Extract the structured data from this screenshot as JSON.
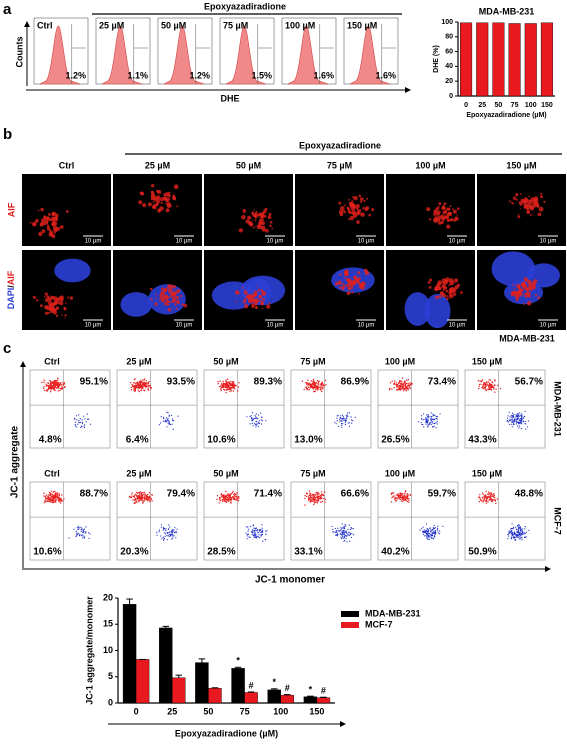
{
  "panel_a": {
    "label": "a",
    "header": "Epoxyazadiradione",
    "y_label": "Counts",
    "x_label": "DHE",
    "histograms": [
      {
        "title": "Ctrl",
        "percent": "1.2%"
      },
      {
        "title": "25 µM",
        "percent": "1.1%"
      },
      {
        "title": "50 µM",
        "percent": "1.2%"
      },
      {
        "title": "75 µM",
        "percent": "1.5%"
      },
      {
        "title": "100 µM",
        "percent": "1.6%"
      },
      {
        "title": "150 µM",
        "percent": "1.6%"
      }
    ]
  },
  "panel_b": {
    "label": "b",
    "header": "Epoxyazadiradione",
    "columns": [
      "Ctrl",
      "25 µM",
      "50 µM",
      "75 µM",
      "100 µM",
      "150 µM"
    ],
    "row_1_label": "AIF",
    "row_2_label": [
      "DAPI",
      "/",
      "AIF"
    ],
    "scale_bar": "10 µm",
    "cell_line": "MDA-MB-231"
  },
  "panel_c": {
    "label": "c",
    "y_label": "JC-1 aggregate",
    "x_label": "JC-1 monomer",
    "rows": [
      {
        "name": "MDA-MB-231",
        "plots": [
          {
            "title": "Ctrl",
            "upper": "95.1%",
            "lower": "4.8%"
          },
          {
            "title": "25 µM",
            "upper": "93.5%",
            "lower": "6.4%"
          },
          {
            "title": "50 µM",
            "upper": "89.3%",
            "lower": "10.6%"
          },
          {
            "title": "75 µM",
            "upper": "86.9%",
            "lower": "13.0%"
          },
          {
            "title": "100 µM",
            "upper": "73.4%",
            "lower": "26.5%"
          },
          {
            "title": "150 µM",
            "upper": "56.7%",
            "lower": "43.3%"
          }
        ]
      },
      {
        "name": "MCF-7",
        "plots": [
          {
            "title": "Ctrl",
            "upper": "88.7%",
            "lower": "10.6%"
          },
          {
            "title": "25 µM",
            "upper": "79.4%",
            "lower": "20.3%"
          },
          {
            "title": "50 µM",
            "upper": "71.4%",
            "lower": "28.5%"
          },
          {
            "title": "75 µM",
            "upper": "66.6%",
            "lower": "33.1%"
          },
          {
            "title": "100 µM",
            "upper": "59.7%",
            "lower": "40.2%"
          },
          {
            "title": "150 µM",
            "upper": "48.8%",
            "lower": "50.9%"
          }
        ]
      }
    ]
  },
  "chart_data": [
    {
      "type": "bar",
      "title": "MDA-MB-231",
      "x_label": "Epoxyazadiradione (µM)",
      "y_label": "DHE (%)",
      "categories": [
        "0",
        "25",
        "50",
        "75",
        "100",
        "150"
      ],
      "values": [
        99,
        99,
        99,
        98,
        98,
        99
      ],
      "color": "#e8191f",
      "ylim": [
        0,
        100
      ],
      "yticks": [
        0,
        20,
        40,
        60,
        80,
        100
      ]
    },
    {
      "type": "bar",
      "x_label": "Epoxyazadiradione (µM)",
      "y_label": "JC-1 aggregate/monomer",
      "categories": [
        "0",
        "25",
        "50",
        "75",
        "100",
        "150"
      ],
      "series": [
        {
          "name": "MDA-MB-231",
          "color": "#000000",
          "values": [
            18.8,
            14.3,
            7.7,
            6.6,
            2.5,
            1.2
          ],
          "errors": [
            1.0,
            0.3,
            0.7,
            0.2,
            0.2,
            0.1
          ],
          "markers": [
            null,
            null,
            null,
            "*",
            "*",
            "*"
          ]
        },
        {
          "name": "MCF-7",
          "color": "#e8191f",
          "values": [
            8.3,
            4.8,
            2.8,
            2.0,
            1.5,
            1.0
          ],
          "errors": [
            0,
            0.5,
            0.1,
            0.1,
            0.1,
            0.1
          ],
          "markers": [
            null,
            null,
            null,
            "#",
            "#",
            "#"
          ]
        }
      ],
      "ylim": [
        0,
        20
      ],
      "yticks": [
        0,
        5,
        10,
        15,
        20
      ],
      "legend": "upper right"
    }
  ]
}
